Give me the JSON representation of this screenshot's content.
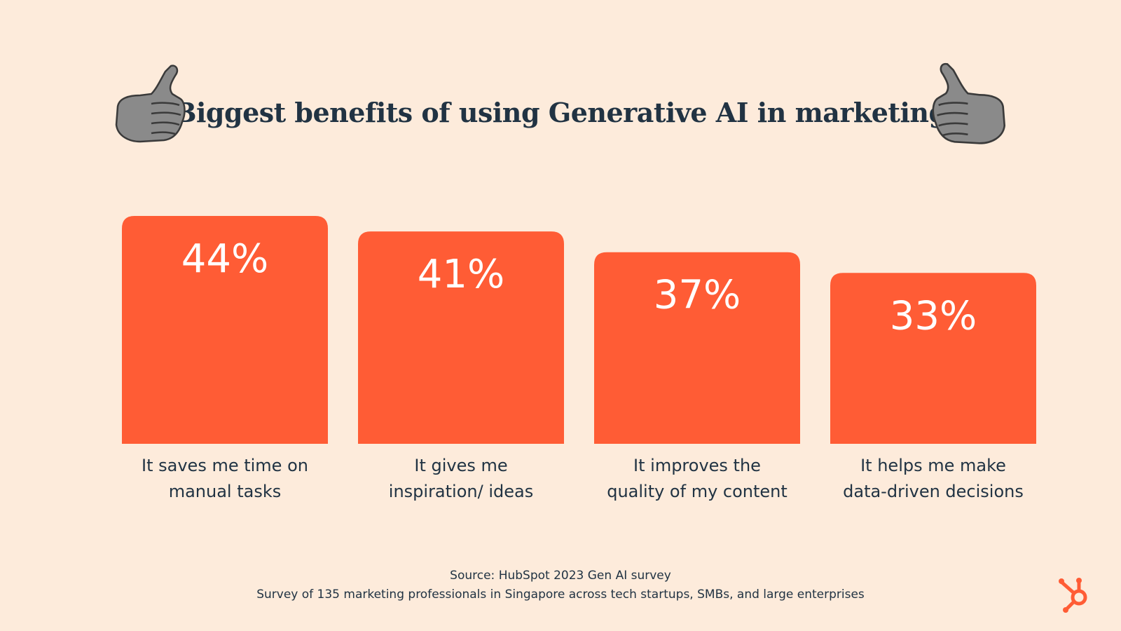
{
  "title": "Biggest benefits of using Generative AI in marketing",
  "colors": {
    "background": "#FDEBDB",
    "bar": "#FF5C35",
    "title": "#213343",
    "text": "#213343",
    "logo": "#FF5C35"
  },
  "icons": [
    "thumbs-up-icon",
    "thumbs-up-icon",
    "hubspot-logo-icon"
  ],
  "chart_data": {
    "type": "bar",
    "title": "Biggest benefits of using Generative AI in marketing",
    "categories": [
      [
        "It saves me time on",
        "manual tasks"
      ],
      [
        "It gives me",
        "inspiration/ ideas"
      ],
      [
        "It improves the",
        "quality of my content"
      ],
      [
        "It helps me make",
        "data-driven decisions"
      ]
    ],
    "values": [
      44,
      41,
      37,
      33
    ],
    "value_labels": [
      "44%",
      "41%",
      "37%",
      "33%"
    ],
    "xlabel": "",
    "ylabel": "",
    "ylim": [
      0,
      44
    ],
    "grid": false,
    "legend": "none"
  },
  "footer": {
    "source": "Source: HubSpot 2023 Gen AI survey",
    "note": "Survey of 135 marketing professionals in Singapore across tech startups, SMBs, and large enterprises"
  }
}
